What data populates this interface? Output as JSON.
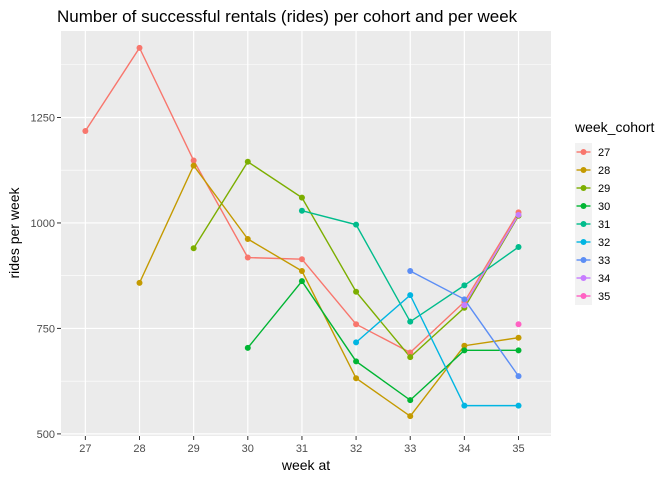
{
  "chart_data": {
    "type": "line",
    "title": "Number of successful rentals (rides) per cohort and per week",
    "xlabel": "week at",
    "ylabel": "rides per week",
    "x_ticks": [
      "27",
      "28",
      "29",
      "30",
      "31",
      "32",
      "33",
      "34",
      "35"
    ],
    "y_ticks": [
      "500",
      "750",
      "1000",
      "1250"
    ],
    "xlim": [
      26.55,
      35.6
    ],
    "ylim": [
      495,
      1455
    ],
    "grid": true,
    "legend_title": "week_cohort",
    "legend_position": "right",
    "background": "#ebebeb",
    "series": [
      {
        "name": "27",
        "color": "#F8766D",
        "x": [
          27,
          28,
          29,
          30,
          31,
          32,
          33,
          34,
          35
        ],
        "y": [
          1218,
          1415,
          1148,
          918,
          914,
          760,
          693,
          813,
          1025
        ]
      },
      {
        "name": "28",
        "color": "#C49A00",
        "x": [
          28,
          29,
          30,
          31,
          32,
          33,
          34,
          35
        ],
        "y": [
          858,
          1136,
          962,
          886,
          632,
          542,
          709,
          728
        ]
      },
      {
        "name": "29",
        "color": "#7CAE00",
        "x": [
          29,
          30,
          31,
          32,
          33,
          34,
          35
        ],
        "y": [
          940,
          1145,
          1060,
          837,
          682,
          799,
          1017
        ]
      },
      {
        "name": "30",
        "color": "#00B533",
        "x": [
          30,
          31,
          32,
          33,
          34,
          35
        ],
        "y": [
          704,
          862,
          672,
          580,
          698,
          698
        ]
      },
      {
        "name": "31",
        "color": "#00BC8C",
        "x": [
          31,
          32,
          33,
          34,
          35
        ],
        "y": [
          1029,
          996,
          766,
          852,
          943
        ]
      },
      {
        "name": "32",
        "color": "#00B5E2",
        "x": [
          32,
          33,
          34,
          35
        ],
        "y": [
          717,
          829,
          567,
          567
        ]
      },
      {
        "name": "33",
        "color": "#5C8EF5",
        "x": [
          33,
          34,
          35
        ],
        "y": [
          886,
          819,
          637
        ]
      },
      {
        "name": "34",
        "color": "#C77CFF",
        "x": [
          34,
          35
        ],
        "y": [
          805,
          1019
        ]
      },
      {
        "name": "35",
        "color": "#FF61C3",
        "x": [
          35
        ],
        "y": [
          760
        ]
      }
    ]
  }
}
